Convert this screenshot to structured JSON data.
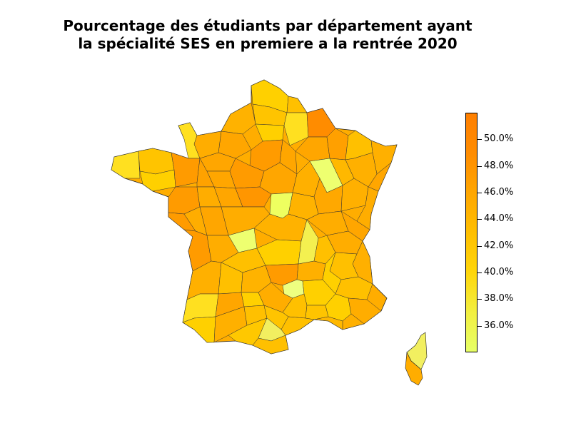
{
  "title": {
    "line1": "Pourcentage des étudiants par département ayant",
    "line2": "la spécialité SES en premiere a la rentrée 2020"
  },
  "colorbar": {
    "ticks": [
      "50.0%",
      "48.0%",
      "46.0%",
      "44.0%",
      "42.0%",
      "40.0%",
      "38.0%",
      "36.0%"
    ],
    "tick_values": [
      50,
      48,
      46,
      44,
      42,
      40,
      38,
      36
    ],
    "range": [
      34.0,
      52.0
    ],
    "colors": {
      "low": "#e7ff66",
      "mid_low": "#ffd60a",
      "mid": "#ffbf00",
      "mid_high": "#ffa600",
      "high": "#ff7f00"
    }
  },
  "map": {
    "subject": "France départements (mainland + Corse) choropleth",
    "legend_unit": "percentage",
    "edge_color": "#000000",
    "fill_colors": [
      "#ffa600",
      "#ffb300",
      "#ffc000",
      "#ffd000",
      "#ff9b00",
      "#ff8c00",
      "#f2ef40",
      "#e7ff66",
      "#ffe020"
    ]
  }
}
